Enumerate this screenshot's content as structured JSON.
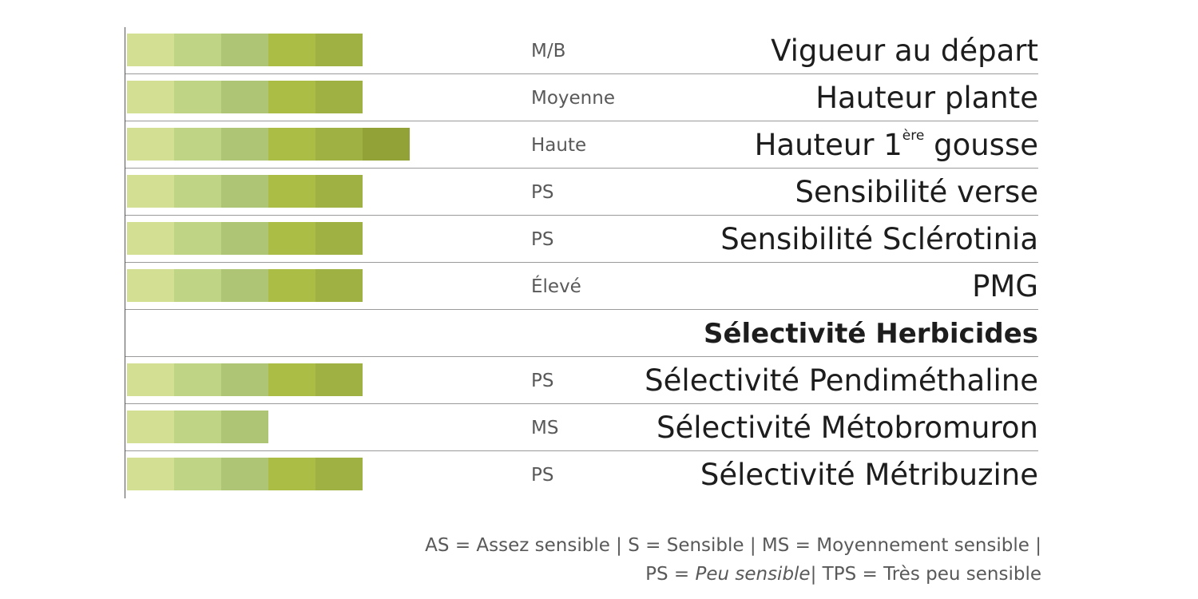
{
  "chart_data": {
    "type": "bar",
    "scale_max": 6,
    "segment_colors": [
      "#d3df92",
      "#c0d485",
      "#aec576",
      "#abbd44",
      "#9fb143",
      "#92a237"
    ],
    "axis_color": "#555555",
    "rows": [
      {
        "label": "Vigueur au départ",
        "rating": "M/B",
        "value": 5
      },
      {
        "label": "Hauteur plante",
        "rating": "Moyenne",
        "value": 5
      },
      {
        "label": "Hauteur 1",
        "label_sup": "ère",
        "label_after": " gousse",
        "rating": "Haute",
        "value": 6
      },
      {
        "label": "Sensibilité verse",
        "rating": "PS",
        "value": 5
      },
      {
        "label": "Sensibilité Sclérotinia",
        "rating": "PS",
        "value": 5
      },
      {
        "label": "PMG",
        "rating": "Élevé",
        "value": 5
      },
      {
        "label": "Sélectivité Herbicides",
        "rating": "",
        "value": 0,
        "heading": true
      },
      {
        "label": "Sélectivité Pendiméthaline",
        "rating": "PS",
        "value": 5
      },
      {
        "label": "Sélectivité Métobromuron",
        "rating": "MS",
        "value": 3
      },
      {
        "label": "Sélectivité Métribuzine",
        "rating": "PS",
        "value": 5
      }
    ]
  },
  "legend": {
    "line1": "AS = Assez sensible | S = Sensible | MS = Moyennement sensible |",
    "line2_prefix": "PS = ",
    "line2_italic": "Peu sensible",
    "line2_suffix": "| TPS = Très  peu sensible"
  }
}
